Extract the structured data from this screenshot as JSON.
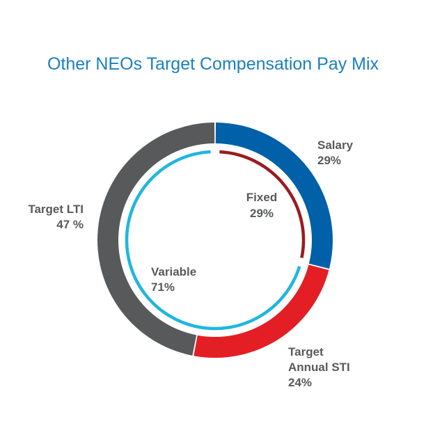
{
  "chart_data": {
    "type": "pie",
    "title": "Other NEOs Target Compensation Pay Mix",
    "title_color": "#1a7fbf",
    "series": [
      {
        "ring": "outer",
        "slices": [
          {
            "name": "Salary",
            "value": 29,
            "label_value": "29%",
            "color": "#0060a8"
          },
          {
            "name": "Target Annual STI",
            "label_lines": [
              "Target",
              "Annual STI"
            ],
            "value": 24,
            "label_value": "24%",
            "color": "#e31e24"
          },
          {
            "name": "Target LTI",
            "value": 47,
            "label_value": "47 %",
            "color": "#58595b"
          }
        ]
      },
      {
        "ring": "inner",
        "slices": [
          {
            "name": "Fixed",
            "value": 29,
            "label_value": "29%",
            "color": "#9b1b1f"
          },
          {
            "name": "Variable",
            "value": 71,
            "label_value": "71%",
            "color": "#1fb6e0"
          }
        ]
      }
    ],
    "label_color": "#58595b"
  }
}
